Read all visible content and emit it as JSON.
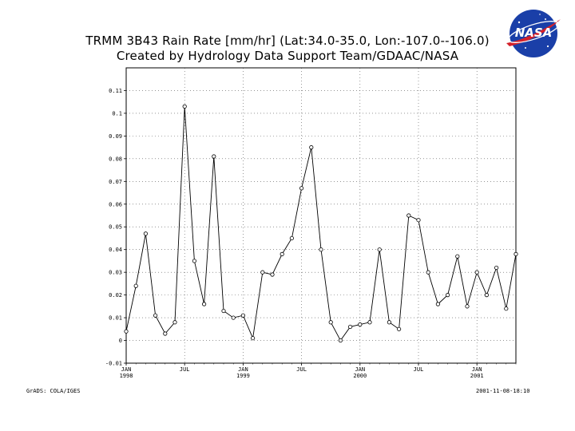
{
  "header": {
    "title_line1": "TRMM 3B43 Rain Rate [mm/hr] (Lat:34.0-35.0, Lon:-107.0--106.0)",
    "title_line2": "Created by Hydrology Data Support Team/GDAAC/NASA",
    "logo_text": "NASA"
  },
  "footer": {
    "left": "GrADS: COLA/IGES",
    "right": "2001-11-08-18:10"
  },
  "chart_data": {
    "type": "line",
    "x_tick_labels": [
      {
        "month_index": 0,
        "line1": "JAN",
        "line2": "1998"
      },
      {
        "month_index": 6,
        "line1": "JUL",
        "line2": ""
      },
      {
        "month_index": 12,
        "line1": "JAN",
        "line2": "1999"
      },
      {
        "month_index": 18,
        "line1": "JUL",
        "line2": ""
      },
      {
        "month_index": 24,
        "line1": "JAN",
        "line2": "2000"
      },
      {
        "month_index": 30,
        "line1": "JUL",
        "line2": ""
      },
      {
        "month_index": 36,
        "line1": "JAN",
        "line2": "2001"
      }
    ],
    "y_ticks": [
      -0.01,
      0,
      0.01,
      0.02,
      0.03,
      0.04,
      0.05,
      0.06,
      0.07,
      0.08,
      0.09,
      0.1,
      0.11
    ],
    "y_tick_labels": [
      "-0.01",
      "0",
      "0.01",
      "0.02",
      "0.03",
      "0.04",
      "0.05",
      "0.06",
      "0.07",
      "0.08",
      "0.09",
      "0.1",
      "0.11"
    ],
    "ylim": [
      -0.01,
      0.12
    ],
    "x_range_months": [
      0,
      40
    ],
    "months": [
      "1998-01",
      "1998-02",
      "1998-03",
      "1998-04",
      "1998-05",
      "1998-06",
      "1998-07",
      "1998-08",
      "1998-09",
      "1998-10",
      "1998-11",
      "1998-12",
      "1999-01",
      "1999-02",
      "1999-03",
      "1999-04",
      "1999-05",
      "1999-06",
      "1999-07",
      "1999-08",
      "1999-09",
      "1999-10",
      "1999-11",
      "1999-12",
      "2000-01",
      "2000-02",
      "2000-03",
      "2000-04",
      "2000-05",
      "2000-06",
      "2000-07",
      "2000-08",
      "2000-09",
      "2000-10",
      "2000-11",
      "2000-12",
      "2001-01",
      "2001-02",
      "2001-03",
      "2001-04",
      "2001-05"
    ],
    "values": [
      0.004,
      0.024,
      0.047,
      0.011,
      0.003,
      0.008,
      0.103,
      0.035,
      0.016,
      0.081,
      0.013,
      0.01,
      0.011,
      0.001,
      0.03,
      0.029,
      0.038,
      0.045,
      0.067,
      0.085,
      0.04,
      0.008,
      0.0,
      0.006,
      0.007,
      0.008,
      0.04,
      0.008,
      0.005,
      0.055,
      0.053,
      0.03,
      0.016,
      0.02,
      0.037,
      0.015,
      0.03,
      0.02,
      0.032,
      0.014,
      0.038
    ],
    "grid": true,
    "grid_style": "dotted",
    "marker": "open-circle",
    "line_color": "#000000"
  }
}
